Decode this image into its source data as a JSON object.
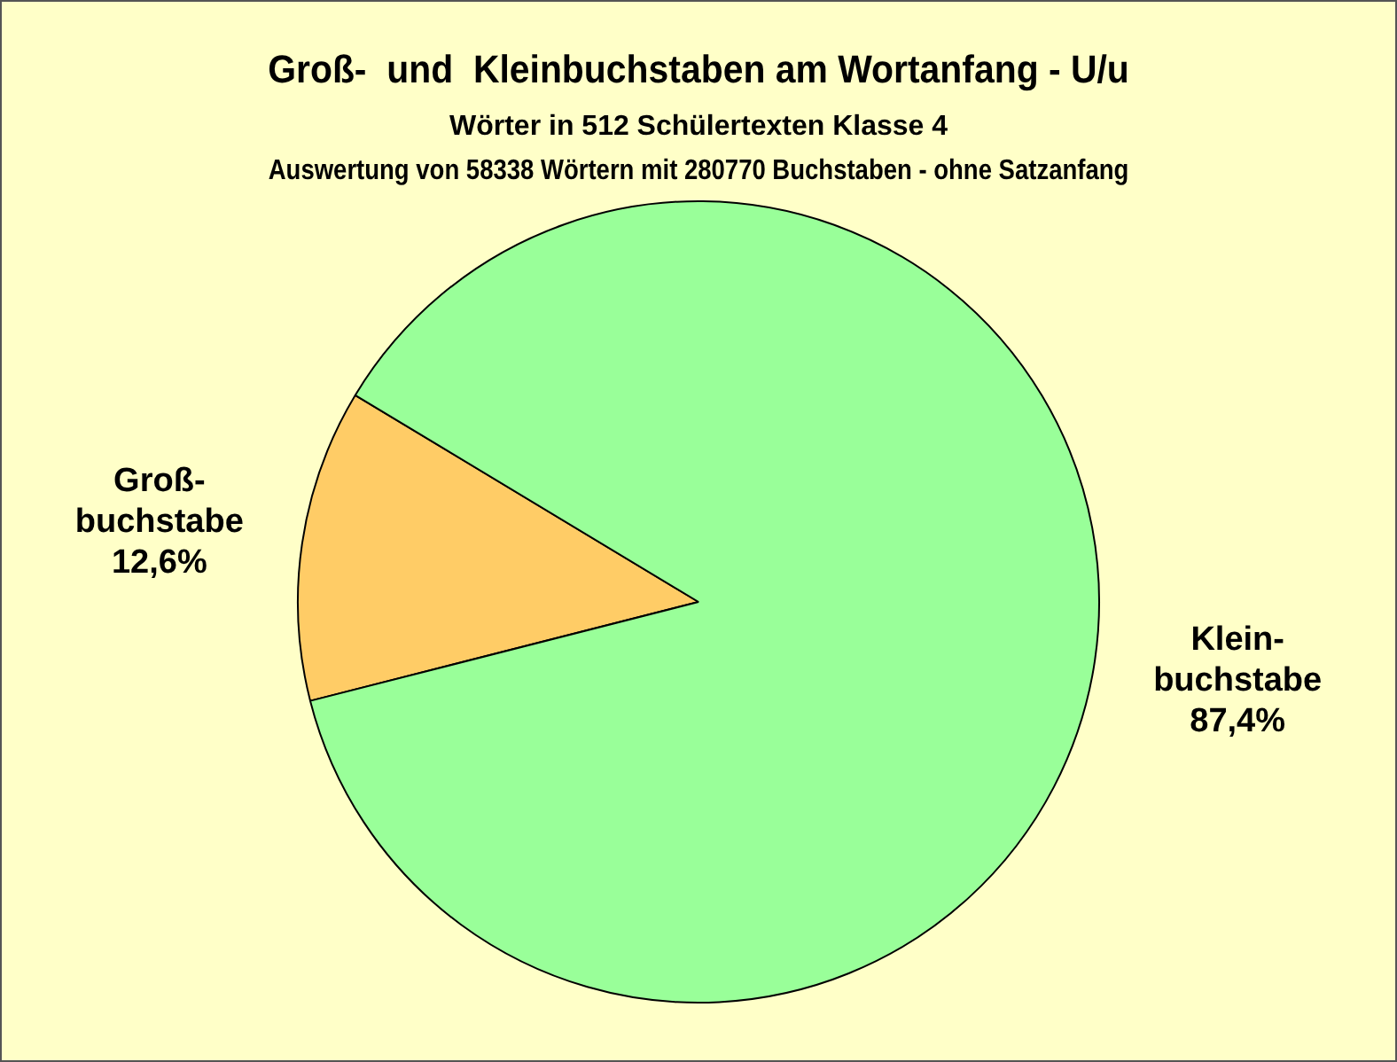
{
  "chart_data": {
    "type": "pie",
    "title": "Groß-  und  Kleinbuchstaben am Wortanfang - U/u",
    "subtitle": "Wörter in 512 Schülertexten Klasse 4\nAuswertung von 58338 Wörtern mit 280770 Buchstaben - ohne Satzanfang",
    "categories": [
      "Groß-buchstabe",
      "Klein-buchstabe"
    ],
    "values": [
      12.6,
      87.4
    ],
    "colors": [
      "#ffcc66",
      "#99ff99"
    ],
    "value_labels": [
      "12,6%",
      "87,4%"
    ],
    "legend": false
  }
}
